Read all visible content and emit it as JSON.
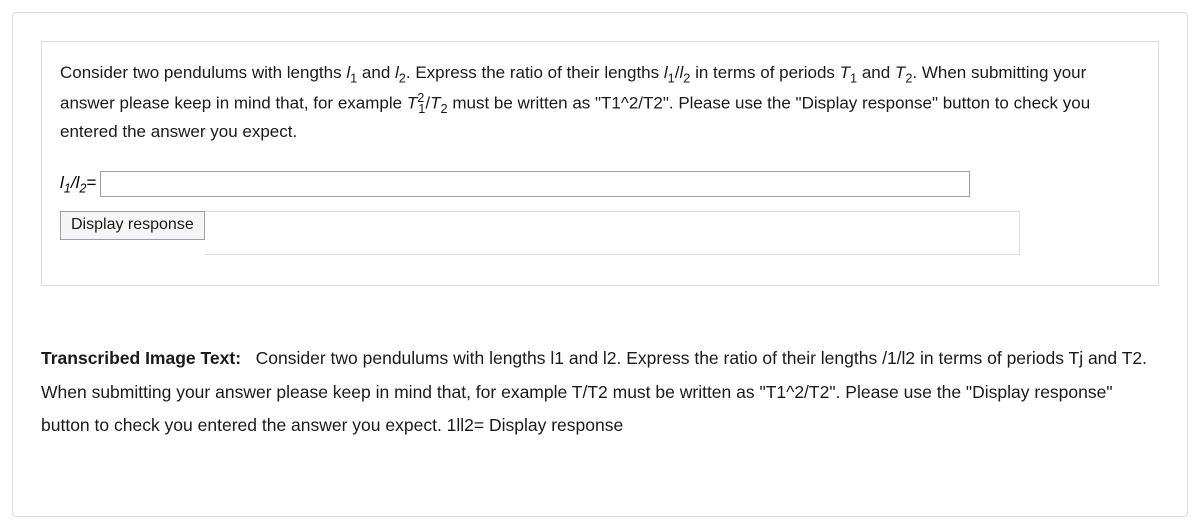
{
  "question": {
    "p1_a": "Consider two pendulums with lengths ",
    "l1": "l",
    "l1_sub": "1",
    "p1_b": " and ",
    "l2": "l",
    "l2_sub": "2",
    "p1_c": ". Express the ratio of their lengths ",
    "ratio_l1": "l",
    "ratio_l1_sub": "1",
    "slash": "/",
    "ratio_l2": "l",
    "ratio_l2_sub": "2",
    "p1_d": " in terms of periods ",
    "T1": "T",
    "T1_sub": "1",
    "p1_e": " and ",
    "T2": "T",
    "T2_sub": "2",
    "p1_f": ". When submitting your answer please keep in mind that, for example ",
    "ex_T": "T",
    "ex_T_sub": "1",
    "ex_T_sup": "2",
    "ex_slash": "/",
    "ex_T2": "T",
    "ex_T2_sub": "2",
    "p1_g": " must be written as \"T1^2/T2\". Please use the \"Display response\" button to check you entered the answer you expect."
  },
  "input": {
    "label_l1": "l",
    "label_l1_sub": "1",
    "label_slash": "/",
    "label_l2": "l",
    "label_l2_sub": "2",
    "label_eq": "=",
    "value": ""
  },
  "button": {
    "display": "Display response"
  },
  "transcribed": {
    "label": "Transcribed Image Text:",
    "body": "Consider two pendulums with lengths l1 and l2. Express the ratio of their lengths /1/l2 in terms of periods Tj and T2. When submitting your answer please keep in mind that, for example T/T2 must be written as \"T1^2/T2\". Please use the \"Display response\" button to check you entered the answer you expect. 1ll2= Display response"
  },
  "colors": {
    "border": "#d9dde2",
    "input_border": "#9aa0a6",
    "text": "#1a1a1a",
    "bg": "#ffffff"
  }
}
